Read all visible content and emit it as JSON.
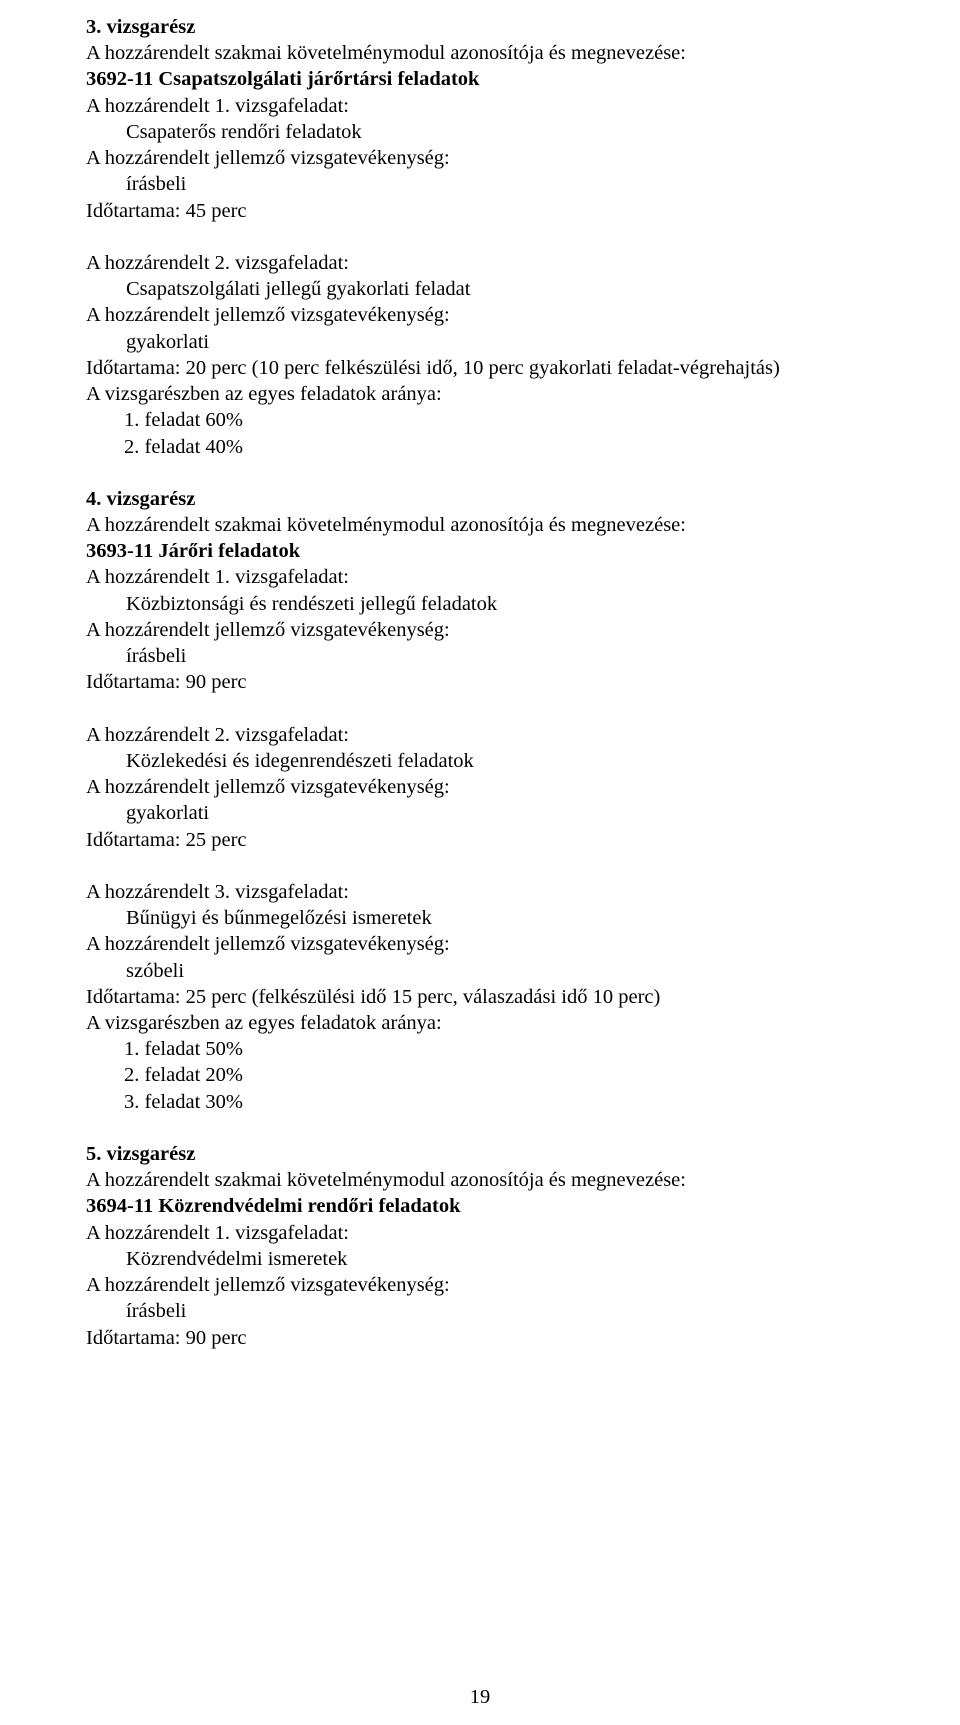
{
  "page": {
    "number": "19",
    "fontColor": "#000000",
    "backgroundColor": "#ffffff"
  },
  "section3": {
    "heading": "3. vizsgarész",
    "modulIntro": "A hozzárendelt szakmai követelménymodul azonosítója és megnevezése:",
    "modul": "3692-11 Csapatszolgálati járőrtársi feladatok",
    "vf1": {
      "line1": "A hozzárendelt 1. vizsgafeladat:",
      "title": "Csapaterős rendőri feladatok",
      "activityLabel": "A hozzárendelt jellemző vizsgatevékenység:",
      "activity": "írásbeli",
      "duration": "Időtartama: 45 perc"
    },
    "vf2": {
      "line1": "A hozzárendelt 2. vizsgafeladat:",
      "title": "Csapatszolgálati jellegű gyakorlati feladat",
      "activityLabel": "A hozzárendelt jellemző vizsgatevékenység:",
      "activity": "gyakorlati",
      "duration": "Időtartama: 20 perc (10 perc felkészülési idő, 10 perc gyakorlati feladat-végrehajtás)",
      "ratioLabel": "A vizsgarészben az egyes feladatok aránya:",
      "ratio1": "1. feladat 60%",
      "ratio2": "2. feladat 40%"
    }
  },
  "section4": {
    "heading": "4. vizsgarész",
    "modulIntro": "A hozzárendelt szakmai követelménymodul azonosítója és megnevezése:",
    "modul": "3693-11 Járőri feladatok",
    "vf1": {
      "line1": "A hozzárendelt 1. vizsgafeladat:",
      "title": "Közbiztonsági és rendészeti jellegű feladatok",
      "activityLabel": "A hozzárendelt jellemző vizsgatevékenység:",
      "activity": "írásbeli",
      "duration": "Időtartama: 90 perc"
    },
    "vf2": {
      "line1": "A hozzárendelt 2. vizsgafeladat:",
      "title": "Közlekedési és idegenrendészeti feladatok",
      "activityLabel": "A hozzárendelt jellemző vizsgatevékenység:",
      "activity": "gyakorlati",
      "duration": "Időtartama: 25 perc"
    },
    "vf3": {
      "line1": "A hozzárendelt 3. vizsgafeladat:",
      "title": "Bűnügyi és bűnmegelőzési ismeretek",
      "activityLabel": "A hozzárendelt jellemző vizsgatevékenység:",
      "activity": "szóbeli",
      "duration": "Időtartama: 25 perc (felkészülési idő 15 perc, válaszadási idő 10 perc)",
      "ratioLabel": "A vizsgarészben az egyes feladatok aránya:",
      "ratio1": "1. feladat 50%",
      "ratio2": "2. feladat 20%",
      "ratio3": "3. feladat 30%"
    }
  },
  "section5": {
    "heading": "5. vizsgarész",
    "modulIntro": "A hozzárendelt szakmai követelménymodul azonosítója és megnevezése:",
    "modul": "3694-11 Közrendvédelmi rendőri feladatok",
    "vf1": {
      "line1": "A hozzárendelt 1. vizsgafeladat:",
      "title": "Közrendvédelmi ismeretek",
      "activityLabel": "A hozzárendelt jellemző vizsgatevékenység:",
      "activity": "írásbeli",
      "duration": "Időtartama: 90 perc"
    }
  }
}
